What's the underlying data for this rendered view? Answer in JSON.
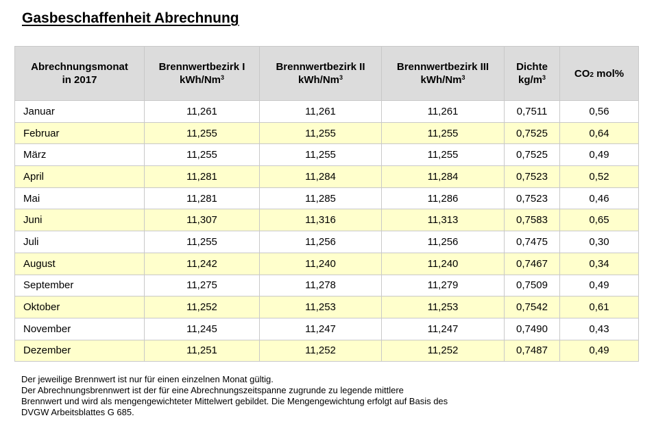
{
  "title": "Gasbeschaffenheit Abrechnung",
  "table": {
    "headers": {
      "month_line1": "Abrechnungsmonat",
      "month_line2": "in 2017",
      "b1_line1": "Brennwertbezirk I",
      "b2_line1": "Brennwertbezirk II",
      "b3_line1": "Brennwertbezirk III",
      "unit_kwh": "kWh/Nm",
      "unit_sup": "3",
      "density_line1": "Dichte",
      "density_unit": "kg/m",
      "co2_prefix": "CO",
      "co2_sub": "2",
      "co2_suffix": " mol%"
    },
    "rows": [
      {
        "month": "Januar",
        "b1": "11,261",
        "b2": "11,261",
        "b3": "11,261",
        "density": "0,7511",
        "co2": "0,56"
      },
      {
        "month": "Februar",
        "b1": "11,255",
        "b2": "11,255",
        "b3": "11,255",
        "density": "0,7525",
        "co2": "0,64"
      },
      {
        "month": "März",
        "b1": "11,255",
        "b2": "11,255",
        "b3": "11,255",
        "density": "0,7525",
        "co2": "0,49"
      },
      {
        "month": "April",
        "b1": "11,281",
        "b2": "11,284",
        "b3": "11,284",
        "density": "0,7523",
        "co2": "0,52"
      },
      {
        "month": "Mai",
        "b1": "11,281",
        "b2": "11,285",
        "b3": "11,286",
        "density": "0,7523",
        "co2": "0,46"
      },
      {
        "month": "Juni",
        "b1": "11,307",
        "b2": "11,316",
        "b3": "11,313",
        "density": "0,7583",
        "co2": "0,65"
      },
      {
        "month": "Juli",
        "b1": "11,255",
        "b2": "11,256",
        "b3": "11,256",
        "density": "0,7475",
        "co2": "0,30"
      },
      {
        "month": "August",
        "b1": "11,242",
        "b2": "11,240",
        "b3": "11,240",
        "density": "0,7467",
        "co2": "0,34"
      },
      {
        "month": "September",
        "b1": "11,275",
        "b2": "11,278",
        "b3": "11,279",
        "density": "0,7509",
        "co2": "0,49"
      },
      {
        "month": "Oktober",
        "b1": "11,252",
        "b2": "11,253",
        "b3": "11,253",
        "density": "0,7542",
        "co2": "0,61"
      },
      {
        "month": "November",
        "b1": "11,245",
        "b2": "11,247",
        "b3": "11,247",
        "density": "0,7490",
        "co2": "0,43"
      },
      {
        "month": "Dezember",
        "b1": "11,251",
        "b2": "11,252",
        "b3": "11,252",
        "density": "0,7487",
        "co2": "0,49"
      }
    ]
  },
  "footnote": {
    "lines": [
      "Der jeweilige Brennwert ist nur für einen einzelnen Monat gültig.",
      "Der Abrechnungsbrennwert ist der für eine Abrechnungszeitspanne zugrunde zu legende mittlere",
      "Brennwert und wird als mengengewichteter Mittelwert gebildet. Die Mengengewichtung erfolgt auf Basis des",
      "DVGW Arbeitsblattes G 685."
    ]
  },
  "colors": {
    "header_bg": "#dcdcdc",
    "alt_row_bg": "#ffffcc",
    "border": "#c8c8c8"
  }
}
